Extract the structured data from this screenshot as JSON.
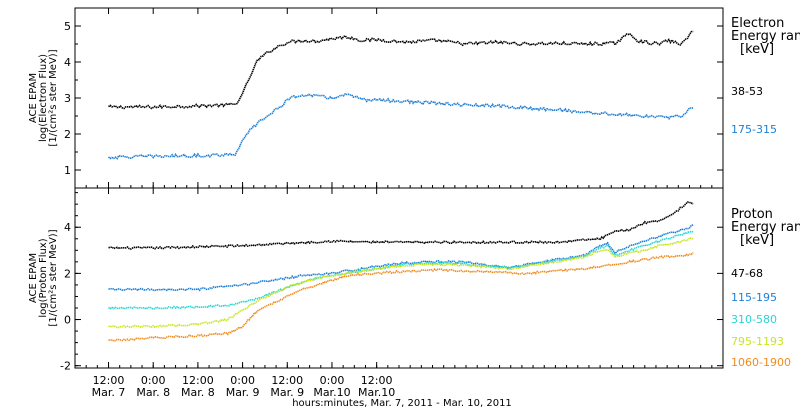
{
  "chart_data": [
    {
      "type": "scatter",
      "panel": "electron",
      "ylabel_lines": [
        "ACE EPAM",
        "log(Electron Flux)",
        "[1/(cm²s ster MeV)]"
      ],
      "ylim": [
        0.5,
        5.5
      ],
      "yticks": [
        1,
        2,
        3,
        4,
        5
      ],
      "legend_title": [
        "Electron",
        "Energy ran",
        "[keV]"
      ],
      "legend_placement": "right",
      "series": [
        {
          "name": "38-53",
          "color": "#000000",
          "x": [
            0,
            12,
            24,
            30,
            34,
            36,
            38,
            39,
            40,
            42,
            44,
            46,
            48,
            52,
            56,
            60,
            64,
            68,
            72,
            80,
            88,
            96,
            104,
            112,
            120,
            128,
            136,
            140,
            142,
            144,
            148,
            150,
            154,
            156,
            157
          ],
          "y": [
            2.75,
            2.75,
            2.78,
            2.8,
            2.82,
            3.1,
            3.6,
            3.8,
            4.05,
            4.2,
            4.35,
            4.45,
            4.55,
            4.6,
            4.58,
            4.65,
            4.7,
            4.6,
            4.62,
            4.55,
            4.6,
            4.5,
            4.55,
            4.5,
            4.52,
            4.5,
            4.52,
            4.8,
            4.6,
            4.55,
            4.5,
            4.6,
            4.5,
            4.75,
            4.85
          ]
        },
        {
          "name": "175-315",
          "color": "#1f7fd6",
          "x": [
            0,
            12,
            24,
            30,
            34,
            36,
            38,
            40,
            42,
            44,
            46,
            48,
            52,
            56,
            60,
            64,
            68,
            72,
            80,
            88,
            96,
            104,
            112,
            120,
            128,
            136,
            144,
            150,
            152,
            154,
            156,
            157
          ],
          "y": [
            1.35,
            1.38,
            1.4,
            1.42,
            1.45,
            1.8,
            2.1,
            2.3,
            2.45,
            2.6,
            2.75,
            2.95,
            3.1,
            3.05,
            3.0,
            3.1,
            2.95,
            2.95,
            2.9,
            2.85,
            2.8,
            2.78,
            2.72,
            2.68,
            2.6,
            2.55,
            2.5,
            2.45,
            2.5,
            2.5,
            2.7,
            2.72
          ]
        }
      ]
    },
    {
      "type": "scatter",
      "panel": "proton",
      "ylabel_lines": [
        "ACE EPAM",
        "log(Proton Flux)",
        "[1/(cm²s ster MeV)]"
      ],
      "ylim": [
        -2.1,
        5.7
      ],
      "yticks": [
        -2,
        0,
        2,
        4
      ],
      "legend_title": [
        "Proton",
        "Energy ran",
        "[keV]"
      ],
      "legend_placement": "right",
      "series": [
        {
          "name": "47-68",
          "color": "#000000",
          "x": [
            0,
            12,
            24,
            36,
            48,
            60,
            72,
            84,
            96,
            108,
            120,
            132,
            136,
            140,
            144,
            148,
            152,
            154,
            156,
            157
          ],
          "y": [
            3.1,
            3.1,
            3.15,
            3.2,
            3.3,
            3.4,
            3.35,
            3.35,
            3.35,
            3.35,
            3.35,
            3.5,
            3.8,
            3.9,
            4.2,
            4.3,
            4.6,
            4.9,
            5.1,
            5.0
          ]
        },
        {
          "name": "115-195",
          "color": "#1f7fd6",
          "x": [
            0,
            12,
            24,
            36,
            44,
            52,
            60,
            68,
            76,
            84,
            96,
            104,
            108,
            112,
            120,
            128,
            132,
            134,
            136,
            140,
            144,
            148,
            152,
            156,
            157
          ],
          "y": [
            1.3,
            1.3,
            1.3,
            1.5,
            1.7,
            1.9,
            2.0,
            2.2,
            2.4,
            2.5,
            2.5,
            2.3,
            2.25,
            2.4,
            2.6,
            2.8,
            3.2,
            3.3,
            2.9,
            3.2,
            3.4,
            3.6,
            3.8,
            4.0,
            4.1
          ]
        },
        {
          "name": "310-580",
          "color": "#2ad4d4",
          "x": [
            0,
            12,
            24,
            32,
            40,
            48,
            56,
            64,
            72,
            80,
            88,
            96,
            104,
            108,
            112,
            120,
            128,
            132,
            134,
            136,
            140,
            144,
            148,
            152,
            156,
            157
          ],
          "y": [
            0.5,
            0.5,
            0.55,
            0.6,
            0.9,
            1.4,
            1.8,
            2.0,
            2.2,
            2.4,
            2.45,
            2.4,
            2.3,
            2.25,
            2.35,
            2.55,
            2.75,
            3.1,
            3.2,
            2.8,
            3.0,
            3.2,
            3.4,
            3.6,
            3.8,
            3.8
          ]
        },
        {
          "name": "795-1193",
          "color": "#c8e61e",
          "x": [
            0,
            12,
            24,
            32,
            40,
            48,
            56,
            64,
            72,
            80,
            88,
            96,
            104,
            108,
            112,
            120,
            128,
            132,
            134,
            136,
            140,
            144,
            148,
            152,
            156,
            157
          ],
          "y": [
            -0.3,
            -0.3,
            -0.2,
            0.0,
            0.8,
            1.4,
            1.8,
            2.0,
            2.2,
            2.35,
            2.4,
            2.35,
            2.25,
            2.2,
            2.3,
            2.5,
            2.7,
            3.0,
            3.05,
            2.7,
            2.9,
            3.0,
            3.2,
            3.3,
            3.5,
            3.5
          ]
        },
        {
          "name": "1060-1900",
          "color": "#f08c1e",
          "x": [
            0,
            12,
            24,
            32,
            36,
            40,
            44,
            48,
            52,
            56,
            60,
            64,
            72,
            80,
            88,
            96,
            104,
            112,
            120,
            128,
            136,
            140,
            144,
            148,
            152,
            156,
            157
          ],
          "y": [
            -0.9,
            -0.8,
            -0.7,
            -0.6,
            -0.3,
            0.4,
            0.7,
            1.0,
            1.3,
            1.5,
            1.7,
            1.9,
            2.0,
            2.1,
            2.15,
            2.1,
            2.05,
            2.0,
            2.1,
            2.2,
            2.4,
            2.5,
            2.6,
            2.7,
            2.75,
            2.8,
            2.9
          ]
        }
      ]
    }
  ],
  "x_axis": {
    "xlabel": "hours:minutes, Mar.  7, 2011 - Mar. 10, 2011",
    "xlim": [
      -9,
      165
    ],
    "ticks": [
      {
        "x": 0,
        "time": "12:00",
        "date": "Mar. 7"
      },
      {
        "x": 12,
        "time": "0:00",
        "date": "Mar. 8"
      },
      {
        "x": 24,
        "time": "12:00",
        "date": "Mar. 8"
      },
      {
        "x": 36,
        "time": "0:00",
        "date": "Mar. 9"
      },
      {
        "x": 48,
        "time": "12:00",
        "date": "Mar. 9"
      },
      {
        "x": 60,
        "time": "0:00",
        "date": "Mar.10"
      },
      {
        "x": 72,
        "time": "12:00",
        "date": "Mar.10"
      }
    ]
  }
}
